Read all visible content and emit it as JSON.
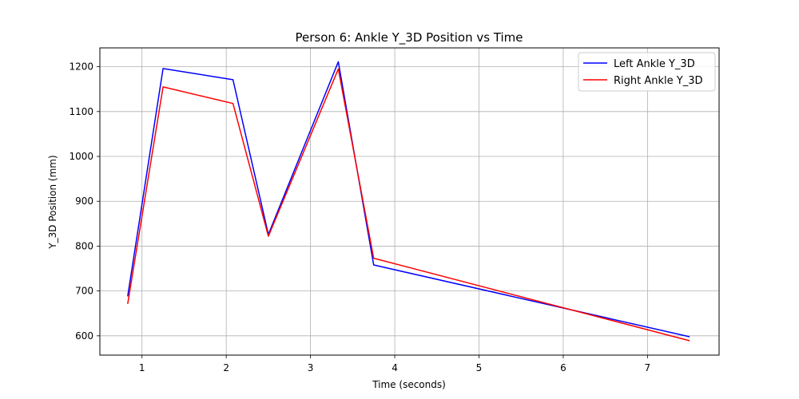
{
  "chart_data": {
    "type": "line",
    "title": "Person 6: Ankle Y_3D Position vs Time",
    "xlabel": "Time (seconds)",
    "ylabel": "Y_3D Position (mm)",
    "xlim": [
      0.5,
      7.85
    ],
    "ylim": [
      557,
      1242
    ],
    "xticks": [
      1,
      2,
      3,
      4,
      5,
      6,
      7
    ],
    "yticks": [
      600,
      700,
      800,
      900,
      1000,
      1100,
      1200
    ],
    "grid": true,
    "legend_position": "upper right",
    "series": [
      {
        "name": "Left Ankle Y_3D",
        "color": "#0000ff",
        "x": [
          0.83,
          1.25,
          2.08,
          2.5,
          3.33,
          3.75,
          7.5
        ],
        "y": [
          688,
          1196,
          1171,
          826,
          1211,
          758,
          598
        ]
      },
      {
        "name": "Right Ankle Y_3D",
        "color": "#ff0000",
        "x": [
          0.83,
          1.25,
          2.08,
          2.5,
          3.33,
          3.75,
          7.5
        ],
        "y": [
          671,
          1155,
          1118,
          822,
          1195,
          773,
          589
        ]
      }
    ]
  }
}
